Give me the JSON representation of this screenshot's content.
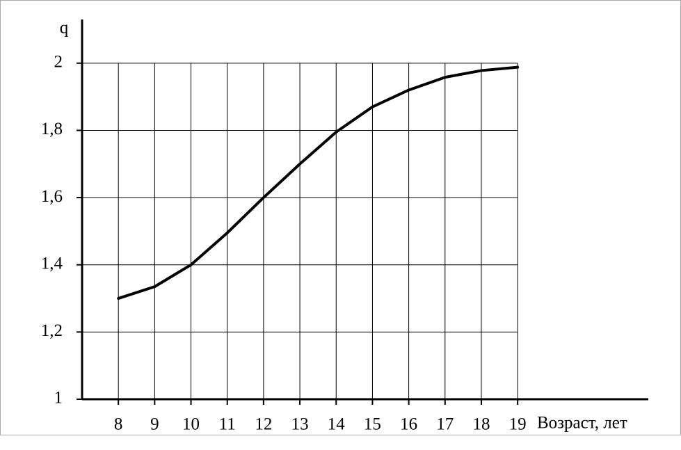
{
  "chart_data": {
    "type": "line",
    "y_label": "q",
    "x_label": "Возраст, лет",
    "x": [
      8,
      9,
      10,
      11,
      12,
      13,
      14,
      15,
      16,
      17,
      18,
      19
    ],
    "values": [
      1.3,
      1.335,
      1.4,
      1.495,
      1.6,
      1.7,
      1.795,
      1.87,
      1.92,
      1.958,
      1.978,
      1.988
    ],
    "color": "#000000",
    "xlim": [
      7,
      22.6
    ],
    "ylim": [
      1,
      2.13
    ],
    "xticks": [
      8,
      9,
      10,
      11,
      12,
      13,
      14,
      15,
      16,
      17,
      18,
      19
    ],
    "yticks": [
      1,
      {
        "value": 1.2,
        "label": "1,2"
      },
      {
        "value": 1.4,
        "label": "1,4"
      },
      {
        "value": 1.6,
        "label": "1,6"
      },
      {
        "value": 1.8,
        "label": "1,8"
      },
      2
    ],
    "grid": true
  }
}
